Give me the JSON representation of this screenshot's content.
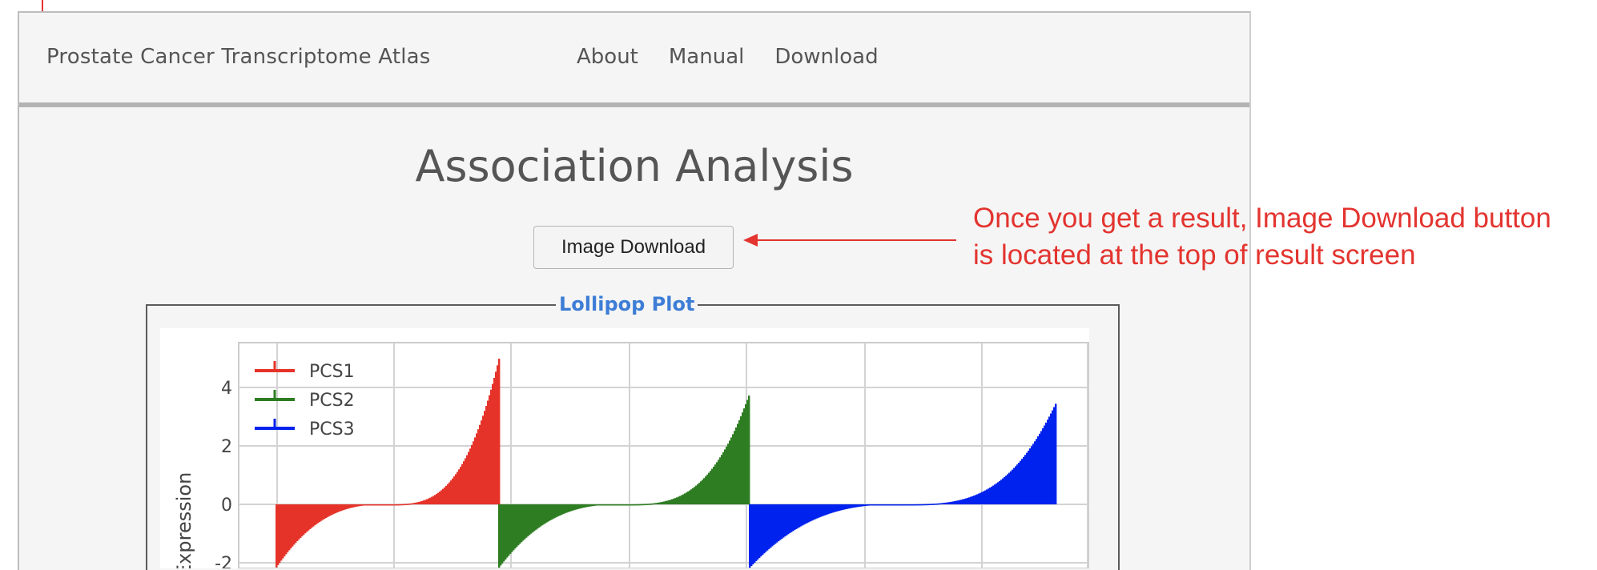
{
  "navbar": {
    "brand": "Prostate Cancer Transcriptome Atlas",
    "links": [
      "About",
      "Manual",
      "Download"
    ]
  },
  "main": {
    "title": "Association Analysis",
    "download_button": "Image Download",
    "panel_title": "Lollipop Plot"
  },
  "annotation": {
    "line1": "Once you get a result, Image Download button",
    "line2": "is located at the top of result screen",
    "color": "#e3342f"
  },
  "chart_data": {
    "type": "bar",
    "title": "",
    "ylabel": "Expression",
    "xlabel": "",
    "ylim": [
      -2.2,
      5.6
    ],
    "yticks": [
      4,
      2,
      0,
      -2
    ],
    "grid": true,
    "legend_position": "top-left",
    "series": [
      {
        "name": "PCS1",
        "color": "#e63329",
        "min": -2.2,
        "max": 5.1,
        "sorted": "ascending",
        "note_partial": true
      },
      {
        "name": "PCS2",
        "color": "#2e7d22",
        "min": -2.2,
        "max": 3.8,
        "sorted": "ascending"
      },
      {
        "name": "PCS3",
        "color": "#0022ee",
        "min": -2.2,
        "max": 3.5,
        "sorted": "ascending"
      }
    ]
  }
}
